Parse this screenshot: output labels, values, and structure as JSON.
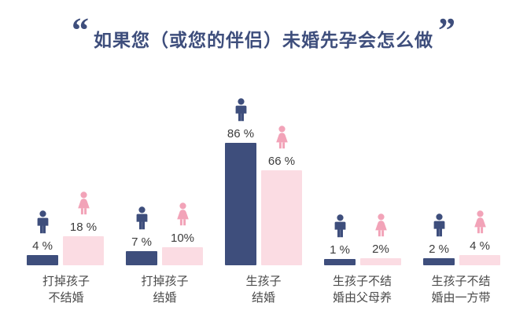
{
  "title": {
    "open_quote": "“",
    "text": "如果您（或您的伴侣）未婚先孕会怎么做",
    "close_quote": "”"
  },
  "colors": {
    "male": "#3e4e7c",
    "female_bar": "#fbdce3",
    "female_icon": "#f2a3b8",
    "title": "#3e4e7c",
    "label_text": "#4a4a4a"
  },
  "chart_data": {
    "type": "bar",
    "title": "如果您（或您的伴侣）未婚先孕会怎么做",
    "value_unit": "%",
    "ylim": [
      0,
      100
    ],
    "grid": false,
    "legend": "none (gender shown by person icons above each bar)",
    "categories": [
      "打掉孩子不结婚",
      "打掉孩子结婚",
      "生孩子结婚",
      "生孩子不结婚由父母养",
      "生孩子不结婚由一方带"
    ],
    "category_lines": [
      [
        "打掉孩子",
        "不结婚"
      ],
      [
        "打掉孩子",
        "结婚"
      ],
      [
        "生孩子",
        "结婚"
      ],
      [
        "生孩子不结",
        "婚由父母养"
      ],
      [
        "生孩子不结",
        "婚由一方带"
      ]
    ],
    "series": [
      {
        "name": "male",
        "icon": "male-person-icon",
        "values": [
          4,
          7,
          86,
          1,
          2
        ],
        "labels": [
          "4 %",
          "7 %",
          "86 %",
          "1 %",
          "2 %"
        ]
      },
      {
        "name": "female",
        "icon": "female-person-icon",
        "values": [
          18,
          10,
          66,
          2,
          4
        ],
        "labels": [
          "18 %",
          "10%",
          "66 %",
          "2%",
          "4 %"
        ]
      }
    ]
  }
}
